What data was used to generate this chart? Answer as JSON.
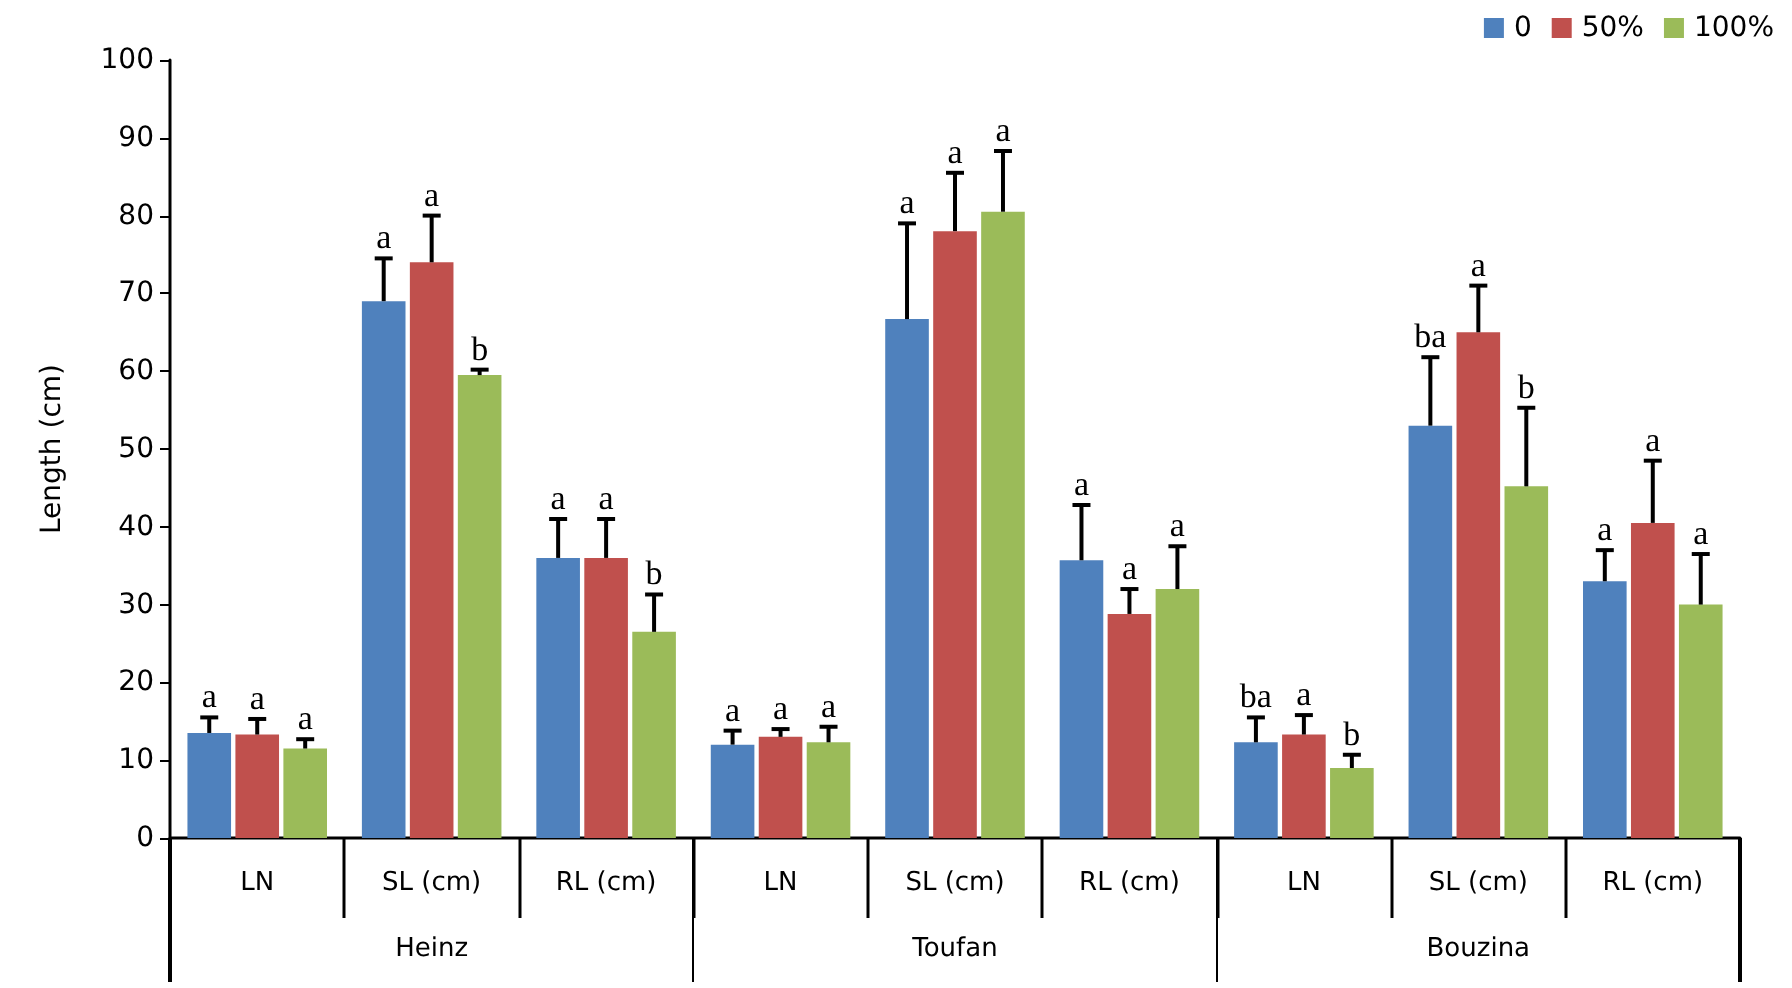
{
  "chart_data": {
    "type": "bar",
    "ylabel": "Length (cm)",
    "categories": [
      "LN",
      "SL (cm)",
      "RL (cm)",
      "LN",
      "SL (cm)",
      "RL (cm)",
      "LN",
      "SL (cm)",
      "RL (cm)"
    ],
    "annotations": [
      "Heinz",
      "Toufan",
      "Bouzina"
    ],
    "series": [
      {
        "name": "0",
        "color": "#4f81bd",
        "values": [
          13.5,
          69,
          36,
          12,
          66.7,
          35.7,
          12.3,
          53,
          33
        ],
        "errors": [
          [
            13.5,
            15.5
          ],
          [
            69,
            74.5
          ],
          [
            36,
            41
          ],
          [
            12,
            13.8
          ],
          [
            66.7,
            79
          ],
          [
            35.7,
            42.8
          ],
          [
            12.3,
            15.5
          ],
          [
            53,
            61.8
          ],
          [
            33,
            37
          ]
        ],
        "value_labels": [
          "a",
          "a",
          "a",
          "a",
          "a",
          "a",
          "ba",
          "ba",
          "a"
        ]
      },
      {
        "name": "50%",
        "color": "#c0504d",
        "values": [
          13.3,
          74,
          36,
          13,
          78,
          28.8,
          13.3,
          65,
          40.5
        ],
        "errors": [
          [
            13.3,
            15.3
          ],
          [
            74,
            80
          ],
          [
            36,
            41
          ],
          [
            13,
            14
          ],
          [
            78,
            85.5
          ],
          [
            28.8,
            32
          ],
          [
            13.3,
            15.8
          ],
          [
            65,
            71
          ],
          [
            40.5,
            48.5
          ]
        ],
        "value_labels": [
          "a",
          "a",
          "a",
          "a",
          "a",
          "a",
          "a",
          "a",
          "a"
        ]
      },
      {
        "name": "100%",
        "color": "#9bbb59",
        "values": [
          11.5,
          59.5,
          26.5,
          12.3,
          80.5,
          32,
          9,
          45.2,
          30
        ],
        "errors": [
          [
            11.5,
            12.7
          ],
          [
            59.5,
            60.2
          ],
          [
            26.5,
            31.3
          ],
          [
            12.3,
            14.3
          ],
          [
            80.5,
            88.3
          ],
          [
            32,
            37.5
          ],
          [
            9,
            10.7
          ],
          [
            45.2,
            55.3
          ],
          [
            30,
            36.5
          ]
        ],
        "value_labels": [
          "a",
          "b",
          "b",
          "a",
          "a",
          "a",
          "b",
          "b",
          "a"
        ]
      }
    ],
    "ylim": [
      0,
      100
    ],
    "yticks": [
      0,
      10,
      20,
      30,
      40,
      50,
      60,
      70,
      80,
      90,
      100
    ],
    "grid": false,
    "legend": "top right"
  }
}
